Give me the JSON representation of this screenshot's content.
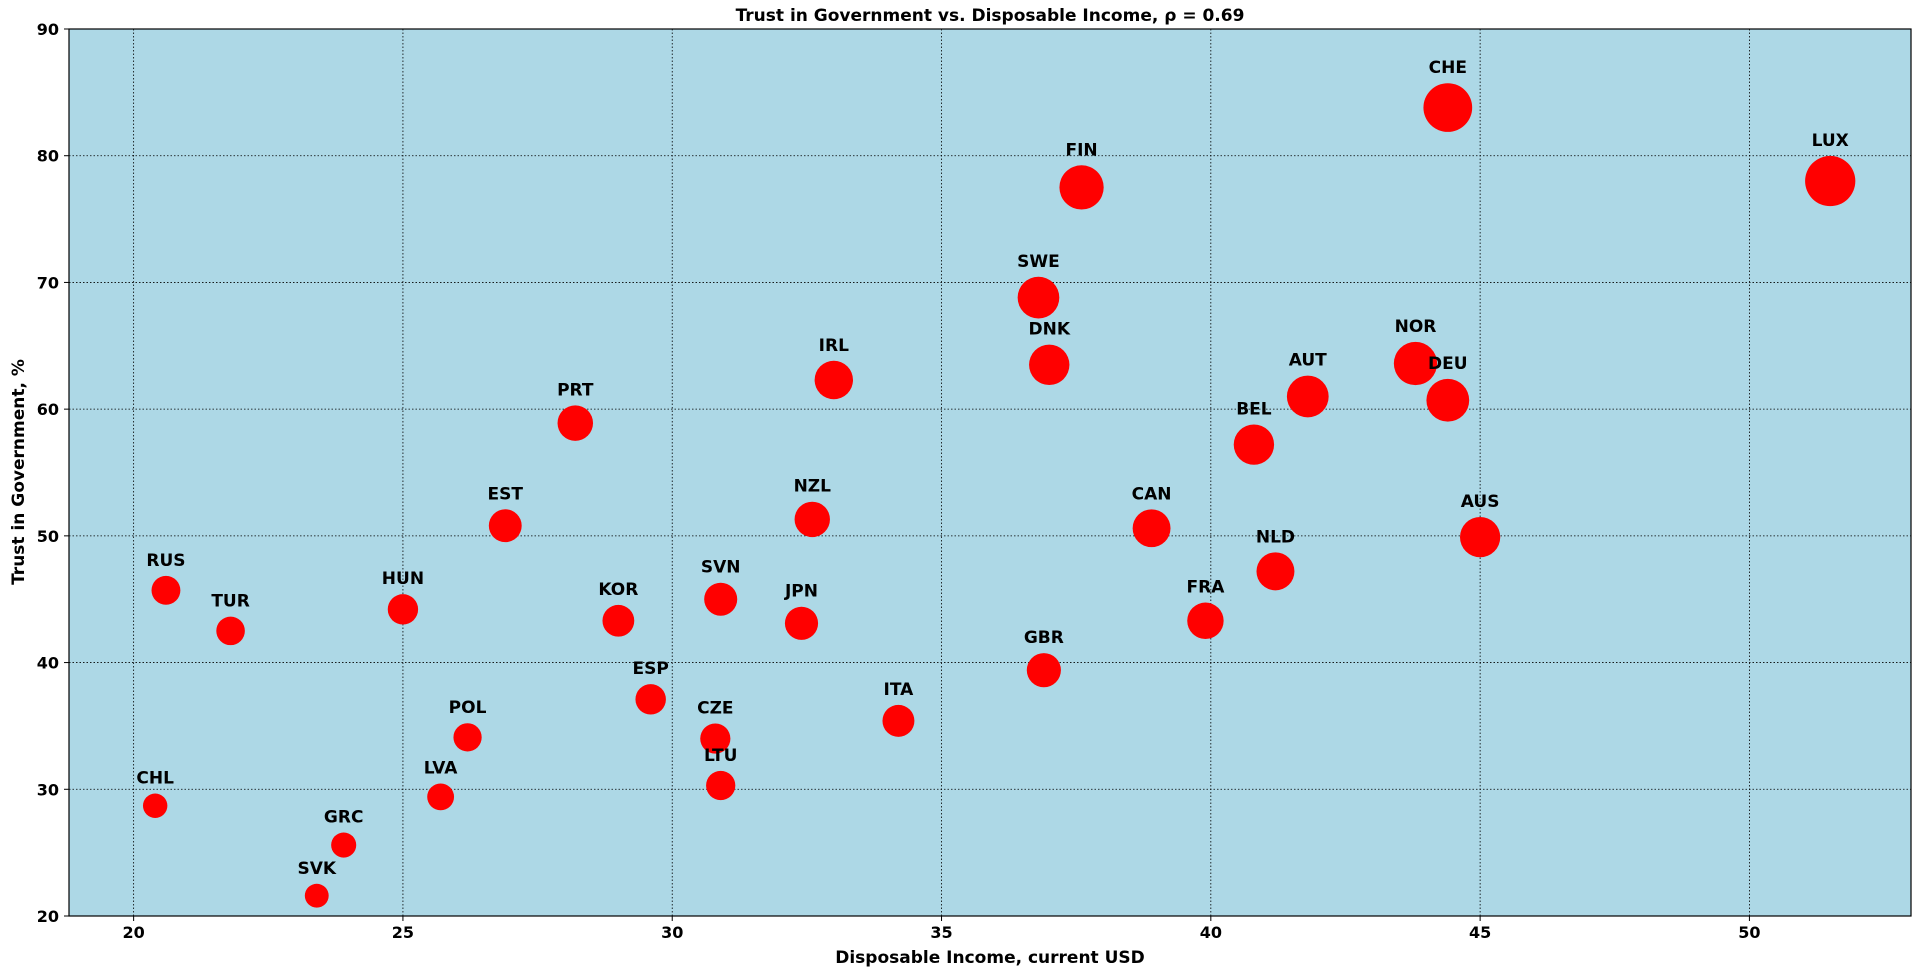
{
  "chart_data": {
    "type": "scatter",
    "title": "Trust in Government vs. Disposable Income, ρ = 0.69",
    "xlabel": "Disposable Income, current USD",
    "ylabel": "Trust in Government, %",
    "xlim": [
      18.8,
      53.0
    ],
    "ylim": [
      20,
      90
    ],
    "xticks": [
      20,
      25,
      30,
      35,
      40,
      45,
      50
    ],
    "yticks": [
      20,
      30,
      40,
      50,
      60,
      70,
      80,
      90
    ],
    "grid": true,
    "marker_color": "#ff0000",
    "plot_background": "#add8e6",
    "points": [
      {
        "label": "CHE",
        "x": 44.4,
        "y": 83.8
      },
      {
        "label": "LUX",
        "x": 51.5,
        "y": 78.0
      },
      {
        "label": "FIN",
        "x": 37.6,
        "y": 77.5
      },
      {
        "label": "SWE",
        "x": 36.8,
        "y": 68.8
      },
      {
        "label": "DNK",
        "x": 37.0,
        "y": 63.5
      },
      {
        "label": "NOR",
        "x": 43.8,
        "y": 63.6
      },
      {
        "label": "IRL",
        "x": 33.0,
        "y": 62.3
      },
      {
        "label": "AUT",
        "x": 41.8,
        "y": 61.0
      },
      {
        "label": "DEU",
        "x": 44.4,
        "y": 60.7
      },
      {
        "label": "PRT",
        "x": 28.2,
        "y": 58.9
      },
      {
        "label": "BEL",
        "x": 40.8,
        "y": 57.2
      },
      {
        "label": "NZL",
        "x": 32.6,
        "y": 51.3
      },
      {
        "label": "EST",
        "x": 26.9,
        "y": 50.8
      },
      {
        "label": "CAN",
        "x": 38.9,
        "y": 50.6
      },
      {
        "label": "AUS",
        "x": 45.0,
        "y": 49.9
      },
      {
        "label": "NLD",
        "x": 41.2,
        "y": 47.2
      },
      {
        "label": "RUS",
        "x": 20.6,
        "y": 45.7
      },
      {
        "label": "SVN",
        "x": 30.9,
        "y": 45.0
      },
      {
        "label": "HUN",
        "x": 25.0,
        "y": 44.2
      },
      {
        "label": "KOR",
        "x": 29.0,
        "y": 43.3
      },
      {
        "label": "FRA",
        "x": 39.9,
        "y": 43.3
      },
      {
        "label": "JPN",
        "x": 32.4,
        "y": 43.1
      },
      {
        "label": "TUR",
        "x": 21.8,
        "y": 42.5
      },
      {
        "label": "GBR",
        "x": 36.9,
        "y": 39.4
      },
      {
        "label": "ESP",
        "x": 29.6,
        "y": 37.1
      },
      {
        "label": "ITA",
        "x": 34.2,
        "y": 35.4
      },
      {
        "label": "POL",
        "x": 26.2,
        "y": 34.1
      },
      {
        "label": "CZE",
        "x": 30.8,
        "y": 34.0
      },
      {
        "label": "LTU",
        "x": 30.9,
        "y": 30.3
      },
      {
        "label": "LVA",
        "x": 25.7,
        "y": 29.4
      },
      {
        "label": "CHL",
        "x": 20.4,
        "y": 28.7
      },
      {
        "label": "GRC",
        "x": 23.9,
        "y": 25.6
      },
      {
        "label": "SVK",
        "x": 23.4,
        "y": 21.6
      }
    ]
  }
}
